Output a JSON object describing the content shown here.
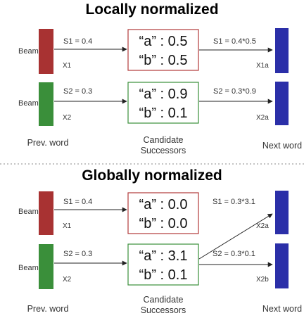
{
  "colors": {
    "prev_beam1": "#a83232",
    "prev_beam2": "#3a8f3a",
    "next_word": "#2b2fa8",
    "box1_border": "#b23a3a",
    "box2_border": "#3a8f3a",
    "divider": "#888888"
  },
  "top": {
    "title": "Locally normalized",
    "beam1": {
      "label": "Beam 1",
      "score": "S1 = 0.4",
      "id": "X1",
      "cand_a": "“a” : 0.5",
      "cand_b": "“b” : 0.5",
      "next_score": "S1 = 0.4*0.5",
      "next_id": "X1a"
    },
    "beam2": {
      "label": "Beam 2",
      "score": "S2 = 0.3",
      "id": "X2",
      "cand_a": "“a” : 0.9",
      "cand_b": "“b” : 0.1",
      "next_score": "S2 = 0.3*0.9",
      "next_id": "X2a"
    },
    "prev_label": "Prev. word",
    "cand_label_1": "Candidate",
    "cand_label_2": "Successors",
    "next_label": "Next word"
  },
  "bottom": {
    "title": "Globally normalized",
    "beam1": {
      "label": "Beam 1",
      "score": "S1 = 0.4",
      "id": "X1",
      "cand_a": "“a” : 0.0",
      "cand_b": "“b” : 0.0",
      "next_score": "S1 = 0.3*3.1",
      "next_id": "X2a"
    },
    "beam2": {
      "label": "Beam 2",
      "score": "S2 = 0.3",
      "id": "X2",
      "cand_a": "“a” : 3.1",
      "cand_b": "“b” : 0.1",
      "next_score": "S2 = 0.3*0.1",
      "next_id": "X2b"
    },
    "prev_label": "Prev. word",
    "cand_label_1": "Candidate",
    "cand_label_2": "Successors",
    "next_label": "Next word"
  }
}
